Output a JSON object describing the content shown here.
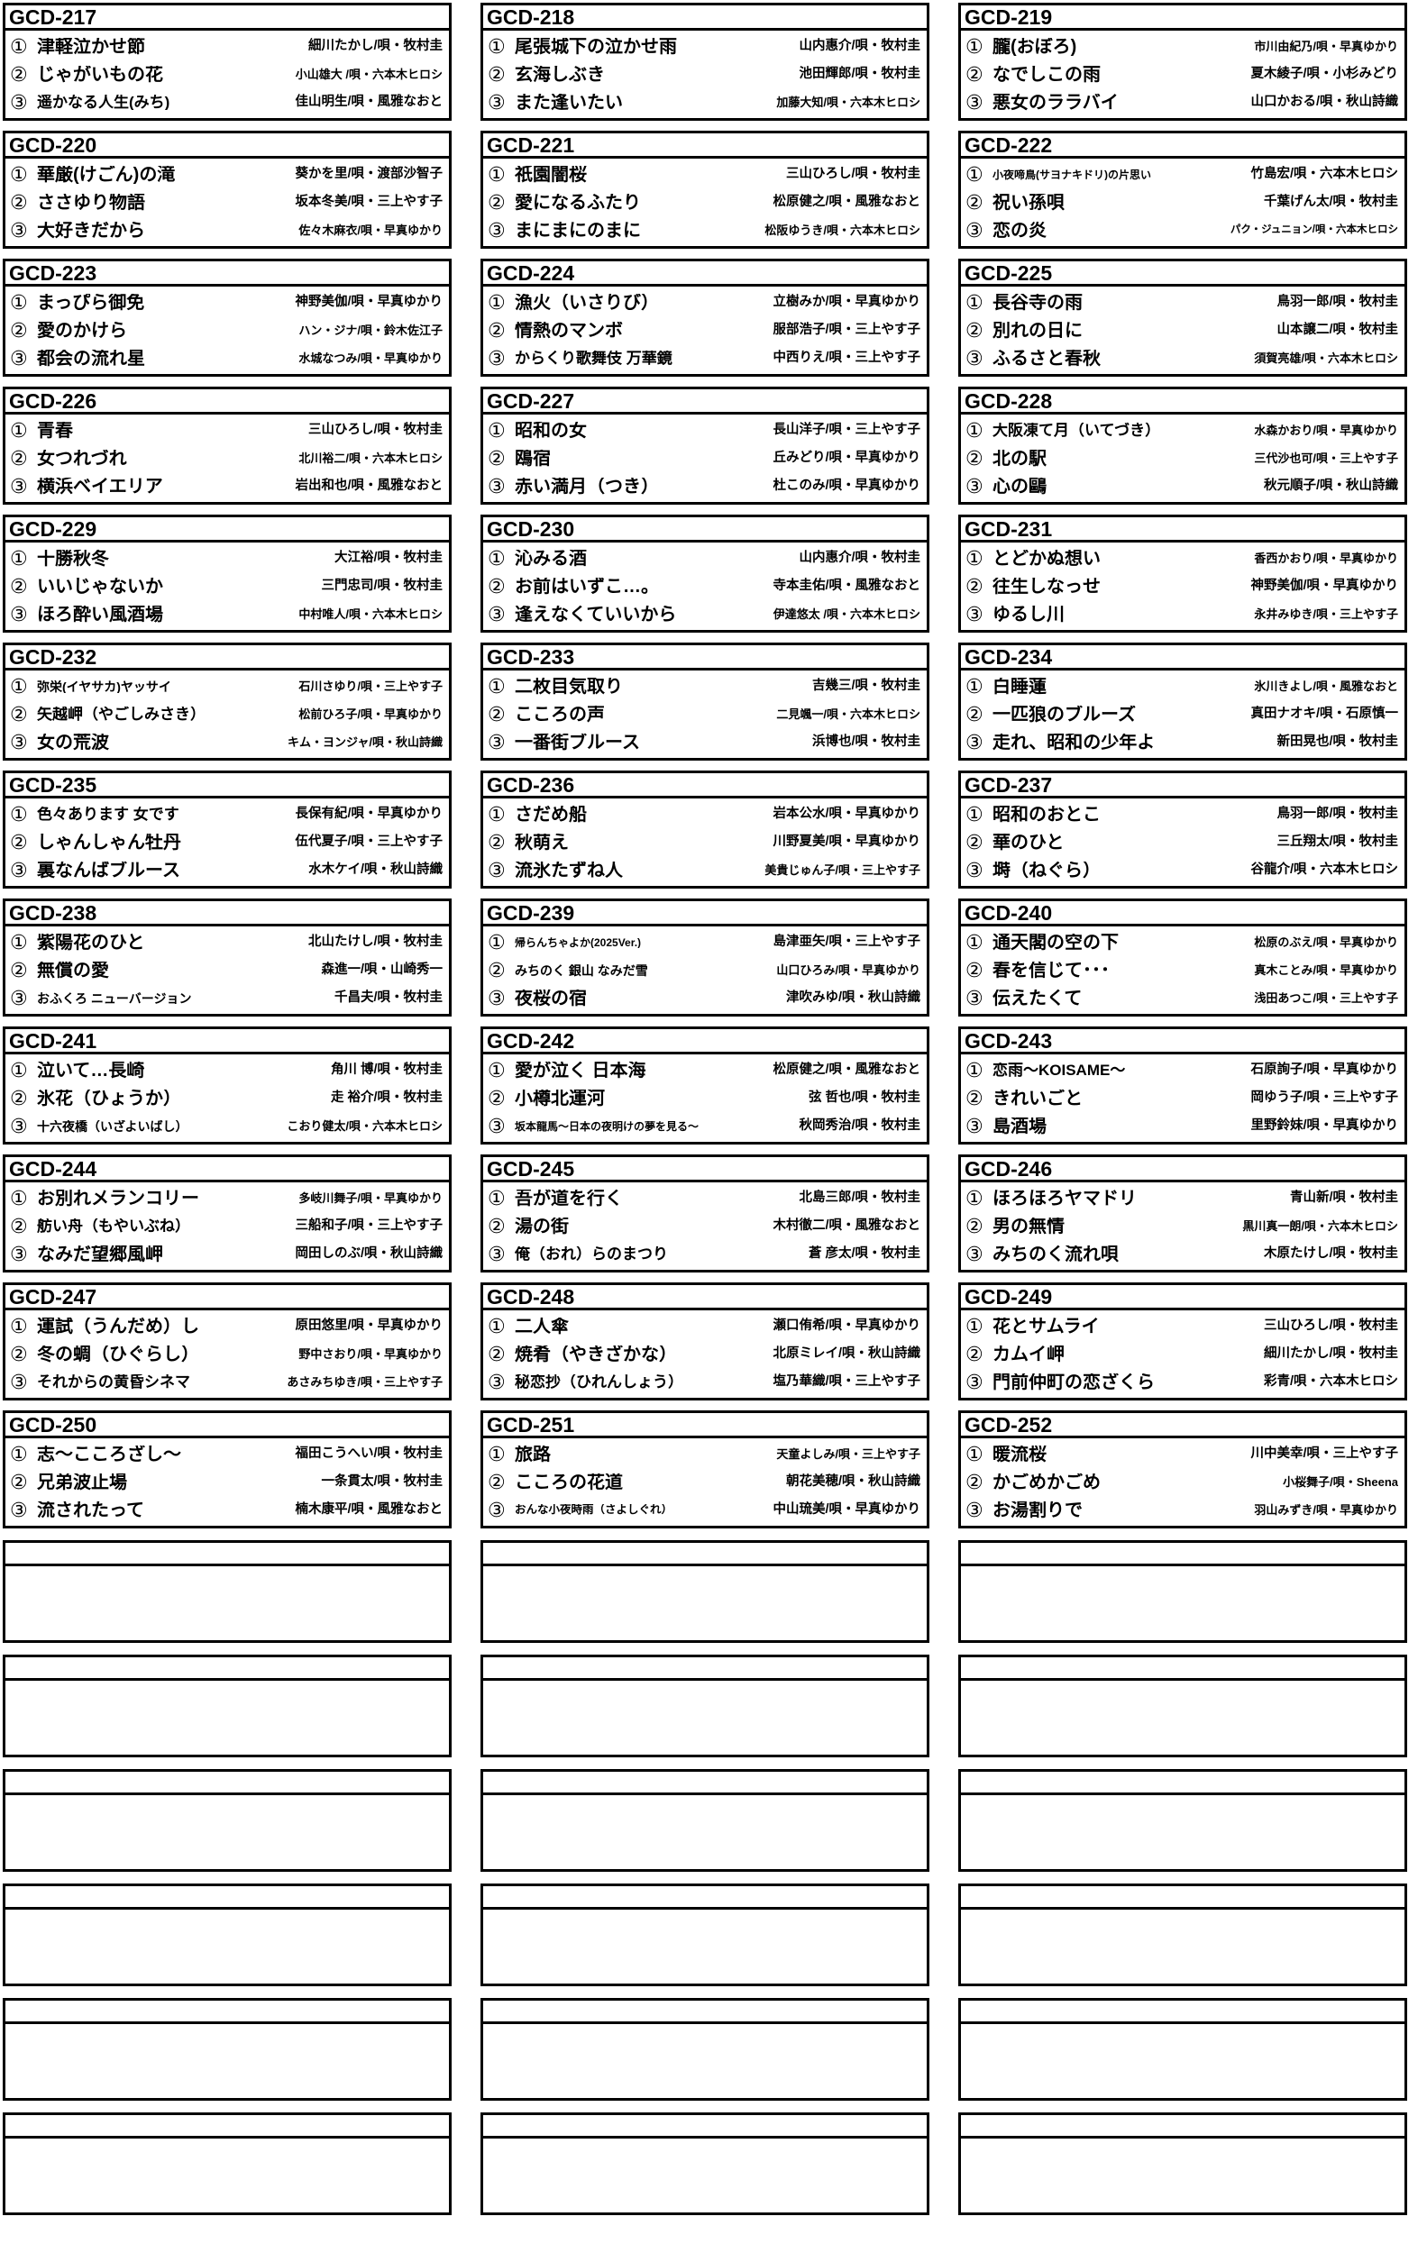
{
  "page": {
    "background": "#ffffff",
    "line_color": "#000000",
    "text_color": "#000000",
    "empty_card_count": 6
  },
  "cards": [
    {
      "id": "GCD-217",
      "tracks": [
        {
          "num": "①",
          "title": "津軽泣かせ節",
          "artist": "細川たかし/唄・牧村圭"
        },
        {
          "num": "②",
          "title": "じゃがいもの花",
          "artist": "小山雄大 /唄・六本木ヒロシ"
        },
        {
          "num": "③",
          "title": "遥かなる人生(みち)",
          "artist": "佳山明生/唄・風雅なおと"
        }
      ]
    },
    {
      "id": "GCD-218",
      "tracks": [
        {
          "num": "①",
          "title": "尾張城下の泣かせ雨",
          "artist": "山内惠介/唄・牧村圭"
        },
        {
          "num": "②",
          "title": "玄海しぶき",
          "artist": "池田輝郎/唄・牧村圭"
        },
        {
          "num": "③",
          "title": "また逢いたい",
          "artist": "加藤大知/唄・六本木ヒロシ"
        }
      ]
    },
    {
      "id": "GCD-219",
      "tracks": [
        {
          "num": "①",
          "title": "朧(おぼろ)",
          "artist": "市川由紀乃/唄・早真ゆかり"
        },
        {
          "num": "②",
          "title": "なでしこの雨",
          "artist": "夏木綾子/唄・小杉みどり"
        },
        {
          "num": "③",
          "title": "悪女のララバイ",
          "artist": "山口かおる/唄・秋山詩織"
        }
      ]
    },
    {
      "id": "GCD-220",
      "tracks": [
        {
          "num": "①",
          "title": "華厳(けごん)の滝",
          "artist": "葵かを里/唄・渡部沙智子"
        },
        {
          "num": "②",
          "title": "ささゆり物語",
          "artist": "坂本冬美/唄・三上やす子"
        },
        {
          "num": "③",
          "title": "大好きだから",
          "artist": "佐々木麻衣/唄・早真ゆかり"
        }
      ]
    },
    {
      "id": "GCD-221",
      "tracks": [
        {
          "num": "①",
          "title": "祇園闇桜",
          "artist": "三山ひろし/唄・牧村圭"
        },
        {
          "num": "②",
          "title": "愛になるふたり",
          "artist": "松原健之/唄・風雅なおと"
        },
        {
          "num": "③",
          "title": "まにまにのまに",
          "artist": "松阪ゆうき/唄・六本木ヒロシ"
        }
      ]
    },
    {
      "id": "GCD-222",
      "tracks": [
        {
          "num": "①",
          "title": "小夜啼鳥(サヨナキドリ)の片思い",
          "artist": "竹島宏/唄・六本木ヒロシ"
        },
        {
          "num": "②",
          "title": "祝い孫唄",
          "artist": "千葉げん太/唄・牧村圭"
        },
        {
          "num": "③",
          "title": "恋の炎",
          "artist": "パク・ジュニョン/唄・六本木ヒロシ"
        }
      ]
    },
    {
      "id": "GCD-223",
      "tracks": [
        {
          "num": "①",
          "title": "まっぴら御免",
          "artist": "神野美伽/唄・早真ゆかり"
        },
        {
          "num": "②",
          "title": "愛のかけら",
          "artist": "ハン・ジナ/唄・鈴木佐江子"
        },
        {
          "num": "③",
          "title": "都会の流れ星",
          "artist": "水城なつみ/唄・早真ゆかり"
        }
      ]
    },
    {
      "id": "GCD-224",
      "tracks": [
        {
          "num": "①",
          "title": "漁火（いさりび）",
          "artist": "立樹みか/唄・早真ゆかり"
        },
        {
          "num": "②",
          "title": "情熱のマンボ",
          "artist": "服部浩子/唄・三上やす子"
        },
        {
          "num": "③",
          "title": "からくり歌舞伎 万華鏡",
          "artist": "中西りえ/唄・三上やす子"
        }
      ]
    },
    {
      "id": "GCD-225",
      "tracks": [
        {
          "num": "①",
          "title": "長谷寺の雨",
          "artist": "鳥羽一郎/唄・牧村圭"
        },
        {
          "num": "②",
          "title": "別れの日に",
          "artist": "山本譲二/唄・牧村圭"
        },
        {
          "num": "③",
          "title": "ふるさと春秋",
          "artist": "須賀亮雄/唄・六本木ヒロシ"
        }
      ]
    },
    {
      "id": "GCD-226",
      "tracks": [
        {
          "num": "①",
          "title": "青春",
          "artist": "三山ひろし/唄・牧村圭"
        },
        {
          "num": "②",
          "title": "女つれづれ",
          "artist": "北川裕二/唄・六本木ヒロシ"
        },
        {
          "num": "③",
          "title": "横浜ベイエリア",
          "artist": "岩出和也/唄・風雅なおと"
        }
      ]
    },
    {
      "id": "GCD-227",
      "tracks": [
        {
          "num": "①",
          "title": "昭和の女",
          "artist": "長山洋子/唄・三上やす子"
        },
        {
          "num": "②",
          "title": "鴎宿",
          "artist": "丘みどり/唄・早真ゆかり"
        },
        {
          "num": "③",
          "title": "赤い満月（つき）",
          "artist": "杜このみ/唄・早真ゆかり"
        }
      ]
    },
    {
      "id": "GCD-228",
      "tracks": [
        {
          "num": "①",
          "title": "大阪凍て月（いてづき）",
          "artist": "水森かおり/唄・早真ゆかり"
        },
        {
          "num": "②",
          "title": "北の駅",
          "artist": "三代沙也可/唄・三上やす子"
        },
        {
          "num": "③",
          "title": "心の鷗",
          "artist": "秋元順子/唄・秋山詩織"
        }
      ]
    },
    {
      "id": "GCD-229",
      "tracks": [
        {
          "num": "①",
          "title": "十勝秋冬",
          "artist": "大江裕/唄・牧村圭"
        },
        {
          "num": "②",
          "title": "いいじゃないか",
          "artist": "三門忠司/唄・牧村圭"
        },
        {
          "num": "③",
          "title": "ほろ酔い風酒場",
          "artist": "中村唯人/唄・六本木ヒロシ"
        }
      ]
    },
    {
      "id": "GCD-230",
      "tracks": [
        {
          "num": "①",
          "title": "沁みる酒",
          "artist": "山内惠介/唄・牧村圭"
        },
        {
          "num": "②",
          "title": "お前はいずこ…。",
          "artist": "寺本圭佑/唄・風雅なおと"
        },
        {
          "num": "③",
          "title": "逢えなくていいから",
          "artist": "伊達悠太 /唄・六本木ヒロシ"
        }
      ]
    },
    {
      "id": "GCD-231",
      "tracks": [
        {
          "num": "①",
          "title": "とどかぬ想い",
          "artist": "香西かおり/唄・早真ゆかり"
        },
        {
          "num": "②",
          "title": "往生しなっせ",
          "artist": "神野美伽/唄・早真ゆかり"
        },
        {
          "num": "③",
          "title": "ゆるし川",
          "artist": "永井みゆき/唄・三上やす子"
        }
      ]
    },
    {
      "id": "GCD-232",
      "tracks": [
        {
          "num": "①",
          "title": "弥栄(イヤサカ)ヤッサイ",
          "artist": "石川さゆり/唄・三上やす子"
        },
        {
          "num": "②",
          "title": "矢越岬（やごしみさき）",
          "artist": "松前ひろ子/唄・早真ゆかり"
        },
        {
          "num": "③",
          "title": "女の荒波",
          "artist": "キム・ヨンジャ/唄・秋山詩織"
        }
      ]
    },
    {
      "id": "GCD-233",
      "tracks": [
        {
          "num": "①",
          "title": "二枚目気取り",
          "artist": "吉幾三/唄・牧村圭"
        },
        {
          "num": "②",
          "title": "こころの声",
          "artist": "二見颯一/唄・六本木ヒロシ"
        },
        {
          "num": "③",
          "title": "一番街ブルース",
          "artist": "浜博也/唄・牧村圭"
        }
      ]
    },
    {
      "id": "GCD-234",
      "tracks": [
        {
          "num": "①",
          "title": "白睡蓮",
          "artist": "氷川きよし/唄・風雅なおと"
        },
        {
          "num": "②",
          "title": "一匹狼のブルーズ",
          "artist": "真田ナオキ/唄・石原慎一"
        },
        {
          "num": "③",
          "title": "走れ、昭和の少年よ",
          "artist": "新田晃也/唄・牧村圭"
        }
      ]
    },
    {
      "id": "GCD-235",
      "tracks": [
        {
          "num": "①",
          "title": "色々あります 女です",
          "artist": "長保有紀/唄・早真ゆかり"
        },
        {
          "num": "②",
          "title": "しゃんしゃん牡丹",
          "artist": "伍代夏子/唄・三上やす子"
        },
        {
          "num": "③",
          "title": "裏なんばブルース",
          "artist": "水木ケイ/唄・秋山詩織"
        }
      ]
    },
    {
      "id": "GCD-236",
      "tracks": [
        {
          "num": "①",
          "title": "さだめ船",
          "artist": "岩本公水/唄・早真ゆかり"
        },
        {
          "num": "②",
          "title": "秋萌え",
          "artist": "川野夏美/唄・早真ゆかり"
        },
        {
          "num": "③",
          "title": "流氷たずね人",
          "artist": "美貴じゅん子/唄・三上やす子"
        }
      ]
    },
    {
      "id": "GCD-237",
      "tracks": [
        {
          "num": "①",
          "title": "昭和のおとこ",
          "artist": "鳥羽一郎/唄・牧村圭"
        },
        {
          "num": "②",
          "title": "華のひと",
          "artist": "三丘翔太/唄・牧村圭"
        },
        {
          "num": "③",
          "title": "塒（ねぐら）",
          "artist": "谷龍介/唄・六本木ヒロシ"
        }
      ]
    },
    {
      "id": "GCD-238",
      "tracks": [
        {
          "num": "①",
          "title": "紫陽花のひと",
          "artist": "北山たけし/唄・牧村圭"
        },
        {
          "num": "②",
          "title": "無償の愛",
          "artist": "森進一/唄・山崎秀一"
        },
        {
          "num": "③",
          "title": "おふくろ ニューバージョン",
          "artist": "千昌夫/唄・牧村圭"
        }
      ]
    },
    {
      "id": "GCD-239",
      "tracks": [
        {
          "num": "①",
          "title": "帰らんちゃよか(2025Ver.)",
          "artist": "島津亜矢/唄・三上やす子"
        },
        {
          "num": "②",
          "title": "みちのく 銀山 なみだ雪",
          "artist": "山口ひろみ/唄・早真ゆかり"
        },
        {
          "num": "③",
          "title": "夜桜の宿",
          "artist": "津吹みゆ/唄・秋山詩織"
        }
      ]
    },
    {
      "id": "GCD-240",
      "tracks": [
        {
          "num": "①",
          "title": "通天閣の空の下",
          "artist": "松原のぶえ/唄・早真ゆかり"
        },
        {
          "num": "②",
          "title": "春を信じて･･･",
          "artist": "真木ことみ/唄・早真ゆかり"
        },
        {
          "num": "③",
          "title": "伝えたくて",
          "artist": "浅田あつこ/唄・三上やす子"
        }
      ]
    },
    {
      "id": "GCD-241",
      "tracks": [
        {
          "num": "①",
          "title": "泣いて…長崎",
          "artist": "角川 博/唄・牧村圭"
        },
        {
          "num": "②",
          "title": "氷花（ひょうか）",
          "artist": "走 裕介/唄・牧村圭"
        },
        {
          "num": "③",
          "title": "十六夜橋（いざよいばし）",
          "artist": "こおり健太/唄・六本木ヒロシ"
        }
      ]
    },
    {
      "id": "GCD-242",
      "tracks": [
        {
          "num": "①",
          "title": "愛が泣く 日本海",
          "artist": "松原健之/唄・風雅なおと"
        },
        {
          "num": "②",
          "title": "小樽北運河",
          "artist": "弦 哲也/唄・牧村圭"
        },
        {
          "num": "③",
          "title": "坂本龍馬～日本の夜明けの夢を見る～",
          "artist": "秋岡秀治/唄・牧村圭"
        }
      ]
    },
    {
      "id": "GCD-243",
      "tracks": [
        {
          "num": "①",
          "title": "恋雨～KOISAME～",
          "artist": "石原詢子/唄・早真ゆかり"
        },
        {
          "num": "②",
          "title": "きれいごと",
          "artist": "岡ゆう子/唄・三上やす子"
        },
        {
          "num": "③",
          "title": "島酒場",
          "artist": "里野鈴妹/唄・早真ゆかり"
        }
      ]
    },
    {
      "id": "GCD-244",
      "tracks": [
        {
          "num": "①",
          "title": "お別れメランコリー",
          "artist": "多岐川舞子/唄・早真ゆかり"
        },
        {
          "num": "②",
          "title": "舫い舟（もやいぶね）",
          "artist": "三船和子/唄・三上やす子"
        },
        {
          "num": "③",
          "title": "なみだ望郷風岬",
          "artist": "岡田しのぶ/唄・秋山詩織"
        }
      ]
    },
    {
      "id": "GCD-245",
      "tracks": [
        {
          "num": "①",
          "title": "吾が道を行く",
          "artist": "北島三郎/唄・牧村圭"
        },
        {
          "num": "②",
          "title": "湯の街",
          "artist": "木村徹二/唄・風雅なおと"
        },
        {
          "num": "③",
          "title": "俺（おれ）らのまつり",
          "artist": "蒼 彦太/唄・牧村圭"
        }
      ]
    },
    {
      "id": "GCD-246",
      "tracks": [
        {
          "num": "①",
          "title": "ほろほろヤマドリ",
          "artist": "青山新/唄・牧村圭"
        },
        {
          "num": "②",
          "title": "男の無情",
          "artist": "黒川真一朗/唄・六本木ヒロシ"
        },
        {
          "num": "③",
          "title": "みちのく流れ唄",
          "artist": "木原たけし/唄・牧村圭"
        }
      ]
    },
    {
      "id": "GCD-247",
      "tracks": [
        {
          "num": "①",
          "title": "運試（うんだめ）し",
          "artist": "原田悠里/唄・早真ゆかり"
        },
        {
          "num": "②",
          "title": "冬の蜩（ひぐらし）",
          "artist": "野中さおり/唄・早真ゆかり"
        },
        {
          "num": "③",
          "title": "それからの黄昏シネマ",
          "artist": "あさみちゆき/唄・三上やす子"
        }
      ]
    },
    {
      "id": "GCD-248",
      "tracks": [
        {
          "num": "①",
          "title": "二人傘",
          "artist": "瀬口侑希/唄・早真ゆかり"
        },
        {
          "num": "②",
          "title": "焼肴（やきざかな）",
          "artist": "北原ミレイ/唄・秋山詩織"
        },
        {
          "num": "③",
          "title": "秘恋抄（ひれんしょう）",
          "artist": "塩乃華織/唄・三上やす子"
        }
      ]
    },
    {
      "id": "GCD-249",
      "tracks": [
        {
          "num": "①",
          "title": "花とサムライ",
          "artist": "三山ひろし/唄・牧村圭"
        },
        {
          "num": "②",
          "title": "カムイ岬",
          "artist": "細川たかし/唄・牧村圭"
        },
        {
          "num": "③",
          "title": "門前仲町の恋ざくら",
          "artist": "彩青/唄・六本木ヒロシ"
        }
      ]
    },
    {
      "id": "GCD-250",
      "tracks": [
        {
          "num": "①",
          "title": "志～こころざし～",
          "artist": "福田こうへい/唄・牧村圭"
        },
        {
          "num": "②",
          "title": "兄弟波止場",
          "artist": "一条貫太/唄・牧村圭"
        },
        {
          "num": "③",
          "title": "流されたって",
          "artist": "楠木康平/唄・風雅なおと"
        }
      ]
    },
    {
      "id": "GCD-251",
      "tracks": [
        {
          "num": "①",
          "title": "旅路",
          "artist": "天童よしみ/唄・三上やす子"
        },
        {
          "num": "②",
          "title": "こころの花道",
          "artist": "朝花美穂/唄・秋山詩織"
        },
        {
          "num": "③",
          "title": "おんな小夜時雨（さよしぐれ）",
          "artist": "中山琉美/唄・早真ゆかり"
        }
      ]
    },
    {
      "id": "GCD-252",
      "tracks": [
        {
          "num": "①",
          "title": "暖流桜",
          "artist": "川中美幸/唄・三上やす子"
        },
        {
          "num": "②",
          "title": "かごめかごめ",
          "artist": "小桜舞子/唄・Sheena"
        },
        {
          "num": "③",
          "title": "お湯割りで",
          "artist": "羽山みずき/唄・早真ゆかり"
        }
      ]
    }
  ]
}
